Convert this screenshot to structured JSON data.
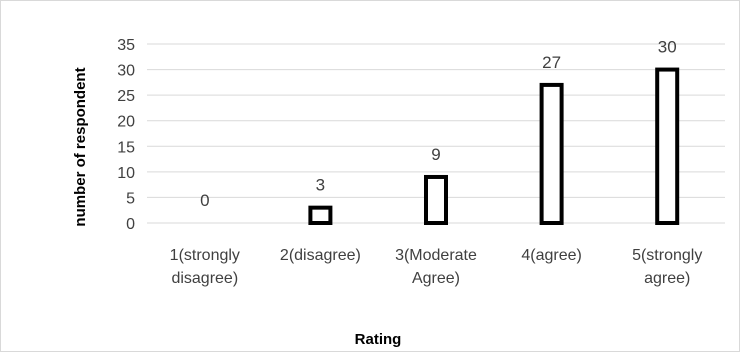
{
  "chart_data": {
    "type": "bar",
    "categories": [
      [
        "1(strongly",
        "disagree)"
      ],
      [
        "2(disagree)"
      ],
      [
        "3(Moderate",
        "Agree)"
      ],
      [
        "4(agree)"
      ],
      [
        "5(strongly",
        "agree)"
      ]
    ],
    "values": [
      0,
      3,
      9,
      27,
      30
    ],
    "data_labels": [
      "0",
      "3",
      "9",
      "27",
      "30"
    ],
    "xlabel": "Rating",
    "ylabel": "number of respondent",
    "ylim": [
      0,
      35
    ],
    "yticks": [
      0,
      5,
      10,
      15,
      20,
      25,
      30,
      35
    ],
    "grid": true,
    "legend": false
  }
}
